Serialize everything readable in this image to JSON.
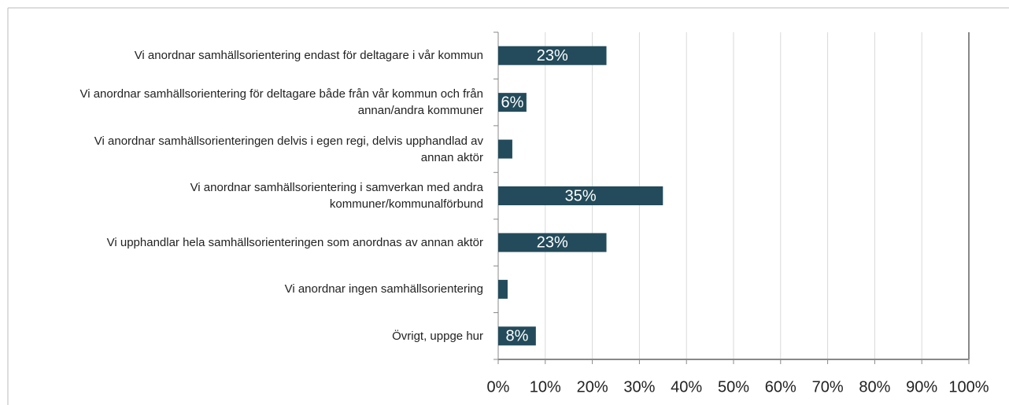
{
  "chart_data": {
    "type": "bar",
    "orientation": "horizontal",
    "categories": [
      "Vi anordnar samhällsorientering endast för deltagare i vår kommun",
      "Vi anordnar samhällsorientering för deltagare både från vår kommun och från annan/andra kommuner",
      "Vi anordnar samhällsorienteringen delvis i egen regi, delvis upphandlad av annan aktör",
      "Vi anordnar samhällsorientering i samverkan med andra kommuner/kommunalförbund",
      "Vi upphandlar hela samhällsorienteringen som anordnas av annan aktör",
      "Vi anordnar ingen samhällsorientering",
      "Övrigt, uppge hur"
    ],
    "values": [
      23,
      6,
      3,
      35,
      23,
      2,
      8
    ],
    "value_labels": [
      "23%",
      "6%",
      null,
      "35%",
      "23%",
      null,
      "8%"
    ],
    "color": "#234b5b",
    "xlim": [
      0,
      100
    ],
    "xticks": [
      {
        "value": 0,
        "label": "0%"
      },
      {
        "value": 10,
        "label": "10%"
      },
      {
        "value": 20,
        "label": "20%"
      },
      {
        "value": 30,
        "label": "30%"
      },
      {
        "value": 40,
        "label": "40%"
      },
      {
        "value": 50,
        "label": "50%"
      },
      {
        "value": 60,
        "label": "60%"
      },
      {
        "value": 70,
        "label": "70%"
      },
      {
        "value": 80,
        "label": "80%"
      },
      {
        "value": 90,
        "label": "90%"
      },
      {
        "value": 100,
        "label": "100%"
      }
    ],
    "grid": true
  }
}
